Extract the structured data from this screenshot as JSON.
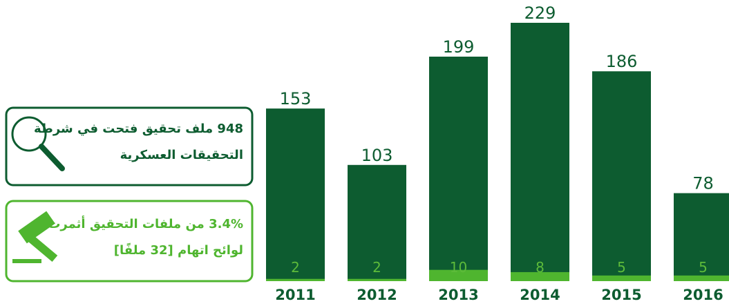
{
  "chart_data": {
    "type": "bar",
    "categories": [
      "2011",
      "2012",
      "2013",
      "2014",
      "2015",
      "2016"
    ],
    "series": [
      {
        "color": "#0d5c30",
        "values": [
          153,
          103,
          199,
          229,
          186,
          78
        ]
      },
      {
        "color": "#4fb52f",
        "values": [
          2,
          2,
          10,
          8,
          5,
          5
        ]
      }
    ]
  },
  "boxes": [
    {
      "lines": [
        "948 ملف تحقيق فتحت في شرطة",
        "التحقيقات العسكرية"
      ],
      "color": "#0d5c30"
    },
    {
      "lines": [
        "3.4% من ملفات التحقيق أثمرت",
        "لوائح اتهام [32 ملفًا]"
      ],
      "color": "#4fb52f"
    }
  ]
}
